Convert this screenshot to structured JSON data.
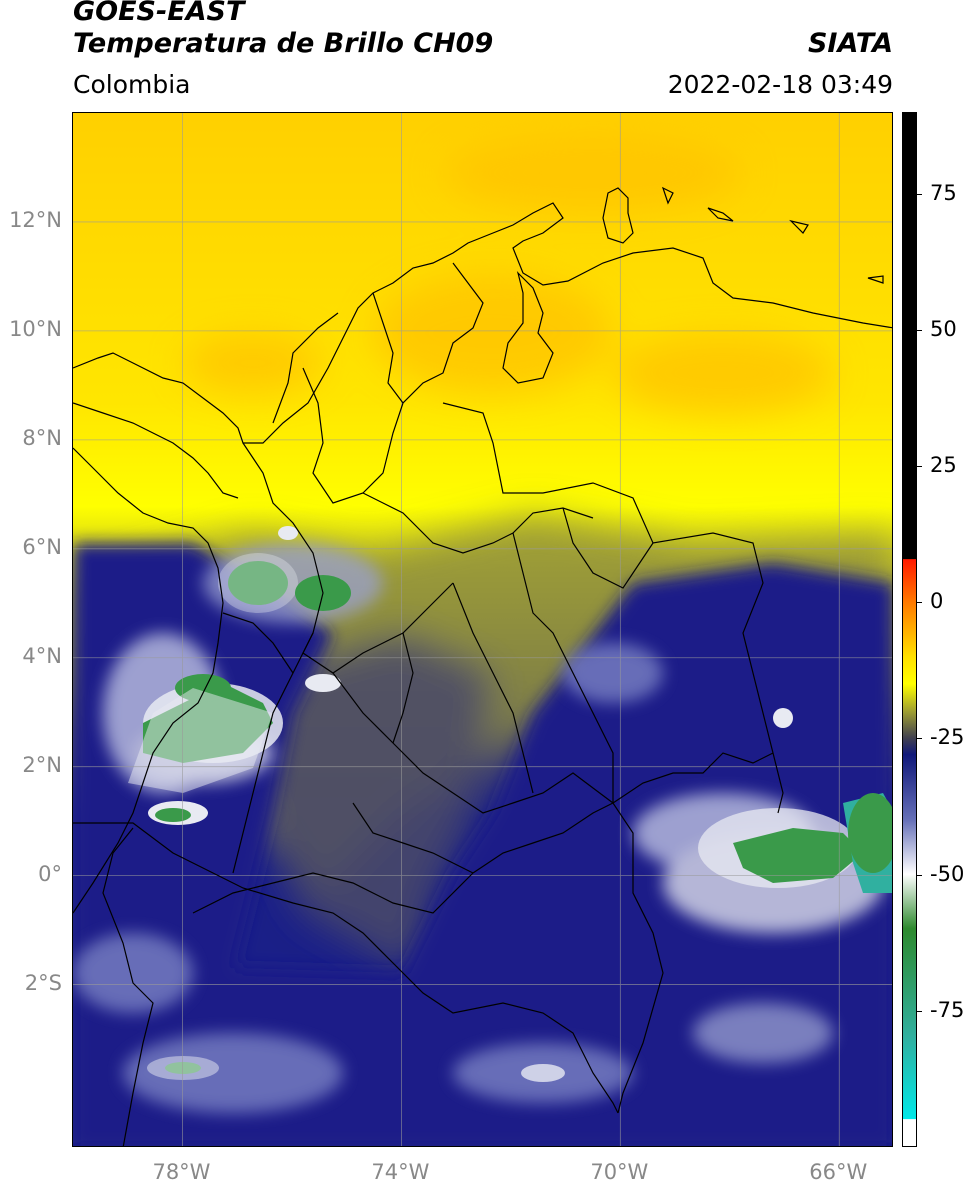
{
  "header": {
    "agency": "GOES-EAST",
    "product": "Temperatura de Brillo CH09",
    "organization": "SIATA",
    "region": "Colombia",
    "datetime": "2022-02-18 03:49"
  },
  "map": {
    "lat_range": [
      -5,
      14
    ],
    "lon_range": [
      -80,
      -65
    ],
    "lat_ticks": [
      {
        "lat": 12,
        "label": "12°N"
      },
      {
        "lat": 10,
        "label": "10°N"
      },
      {
        "lat": 8,
        "label": "8°N"
      },
      {
        "lat": 6,
        "label": "6°N"
      },
      {
        "lat": 4,
        "label": "4°N"
      },
      {
        "lat": 2,
        "label": "2°N"
      },
      {
        "lat": 0,
        "label": "0°"
      },
      {
        "lat": -2,
        "label": "2°S"
      }
    ],
    "lon_ticks": [
      {
        "lon": -78,
        "label": "78°W"
      },
      {
        "lon": -74,
        "label": "74°W"
      },
      {
        "lon": -70,
        "label": "70°W"
      },
      {
        "lon": -66,
        "label": "66°W"
      }
    ],
    "colors": {
      "warm": "#ffe800",
      "warm_dry": "#ffc400",
      "mid": "#8a8a40",
      "gray": "#4a4a68",
      "cold": "#1a1f88",
      "white": "#e8eaf2",
      "green": "#3a9a4a",
      "teal": "#30b0a0"
    },
    "gridlines": true
  },
  "colorbar": {
    "range": [
      -100,
      90
    ],
    "ticks": [
      {
        "value": 75,
        "label": "75"
      },
      {
        "value": 50,
        "label": "50"
      },
      {
        "value": 25,
        "label": "25"
      },
      {
        "value": 0,
        "label": "0"
      },
      {
        "value": -25,
        "label": "-25"
      },
      {
        "value": -50,
        "label": "-50"
      },
      {
        "value": -75,
        "label": "-75"
      }
    ],
    "stops": [
      {
        "value": 90,
        "color": "#000000"
      },
      {
        "value": 8,
        "color": "#000000"
      },
      {
        "value": 7.9,
        "color": "#ff1a00"
      },
      {
        "value": 0,
        "color": "#ff7a00"
      },
      {
        "value": -10,
        "color": "#ffe000"
      },
      {
        "value": -15,
        "color": "#ffff00"
      },
      {
        "value": -20,
        "color": "#a0a030"
      },
      {
        "value": -25,
        "color": "#404050"
      },
      {
        "value": -28,
        "color": "#10187a"
      },
      {
        "value": -40,
        "color": "#6670b8"
      },
      {
        "value": -50,
        "color": "#ffffff"
      },
      {
        "value": -60,
        "color": "#2e8a2e"
      },
      {
        "value": -80,
        "color": "#30b0a0"
      },
      {
        "value": -95,
        "color": "#00e8e8"
      },
      {
        "value": -95.1,
        "color": "#ffffff"
      },
      {
        "value": -100,
        "color": "#ffffff"
      }
    ]
  }
}
